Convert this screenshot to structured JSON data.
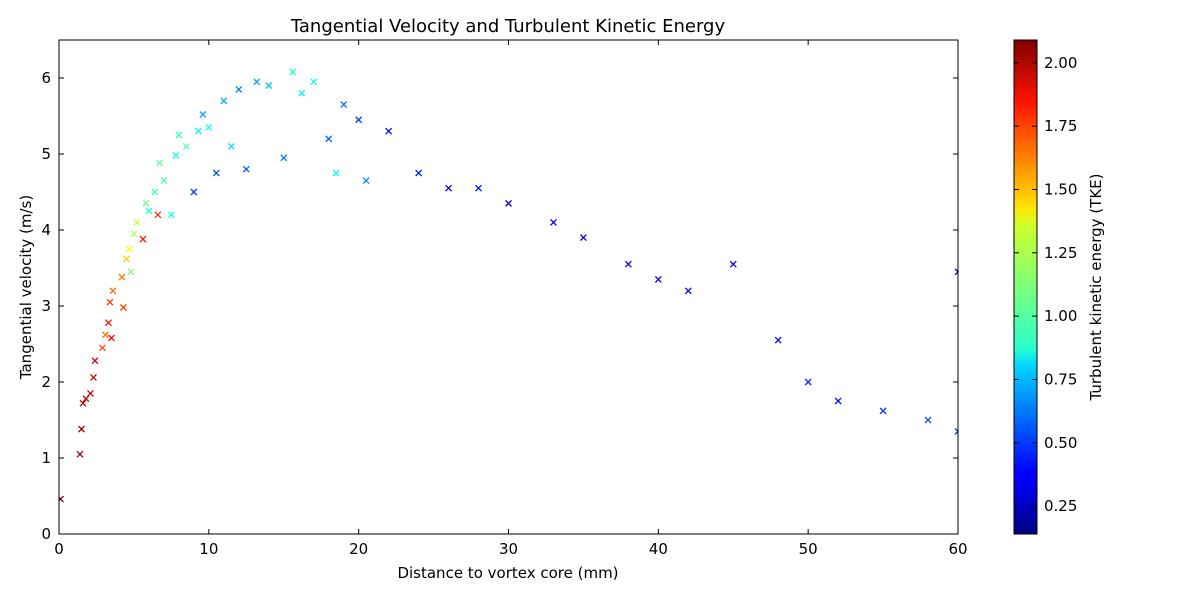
{
  "chart_data": {
    "type": "scatter",
    "title": "Tangential Velocity and Turbulent Kinetic Energy",
    "xlabel": "Distance to vortex core (mm)",
    "ylabel": "Tangential velocity (m/s)",
    "xlim": [
      0,
      60
    ],
    "ylim": [
      0,
      6.5
    ],
    "xticks": [
      0,
      10,
      20,
      30,
      40,
      50,
      60
    ],
    "yticks": [
      0,
      1,
      2,
      3,
      4,
      5,
      6
    ],
    "marker": "x",
    "grid": false,
    "colorbar": {
      "label": "Turbulent kinetic energy (TKE)",
      "min": 0.14,
      "max": 2.09,
      "ticks": [
        "0.25",
        "0.50",
        "0.75",
        "1.00",
        "1.25",
        "1.50",
        "1.75",
        "2.00"
      ],
      "colormap": "jet"
    },
    "points": [
      [
        0.1,
        0.46,
        2.08
      ],
      [
        1.4,
        1.05,
        2.05
      ],
      [
        1.5,
        1.38,
        2.02
      ],
      [
        1.6,
        1.72,
        1.95
      ],
      [
        1.8,
        1.78,
        1.98
      ],
      [
        2.1,
        1.85,
        1.96
      ],
      [
        2.3,
        2.06,
        1.95
      ],
      [
        2.4,
        2.28,
        1.92
      ],
      [
        2.9,
        2.45,
        1.7
      ],
      [
        3.1,
        2.62,
        1.62
      ],
      [
        3.3,
        2.78,
        1.82
      ],
      [
        3.4,
        3.05,
        1.75
      ],
      [
        3.6,
        3.2,
        1.65
      ],
      [
        3.5,
        2.58,
        1.85
      ],
      [
        4.2,
        3.38,
        1.6
      ],
      [
        4.3,
        2.98,
        1.72
      ],
      [
        4.5,
        3.62,
        1.45
      ],
      [
        4.7,
        3.75,
        1.35
      ],
      [
        4.8,
        3.45,
        1.1
      ],
      [
        5.0,
        3.95,
        1.2
      ],
      [
        5.2,
        4.1,
        1.25
      ],
      [
        5.6,
        3.88,
        1.8
      ],
      [
        5.8,
        4.35,
        1.1
      ],
      [
        6.0,
        4.25,
        0.95
      ],
      [
        6.4,
        4.5,
        1.0
      ],
      [
        6.6,
        4.2,
        1.75
      ],
      [
        6.7,
        4.88,
        1.05
      ],
      [
        7.0,
        4.65,
        1.02
      ],
      [
        7.5,
        4.2,
        0.9
      ],
      [
        7.8,
        4.98,
        0.92
      ],
      [
        8.0,
        5.25,
        0.95
      ],
      [
        8.5,
        5.1,
        1.05
      ],
      [
        9.0,
        4.5,
        0.5
      ],
      [
        9.3,
        5.3,
        0.85
      ],
      [
        9.6,
        5.52,
        0.7
      ],
      [
        10.0,
        5.35,
        0.9
      ],
      [
        10.5,
        4.75,
        0.55
      ],
      [
        11.0,
        5.7,
        0.7
      ],
      [
        11.5,
        5.1,
        0.82
      ],
      [
        12.0,
        5.85,
        0.62
      ],
      [
        12.5,
        4.8,
        0.55
      ],
      [
        13.2,
        5.95,
        0.7
      ],
      [
        14.0,
        5.9,
        0.75
      ],
      [
        15.0,
        4.95,
        0.6
      ],
      [
        15.6,
        6.08,
        0.92
      ],
      [
        16.2,
        5.8,
        0.85
      ],
      [
        17.0,
        5.95,
        0.9
      ],
      [
        18.0,
        5.2,
        0.55
      ],
      [
        18.5,
        4.75,
        0.88
      ],
      [
        19.0,
        5.65,
        0.6
      ],
      [
        20.0,
        5.45,
        0.48
      ],
      [
        20.5,
        4.65,
        0.65
      ],
      [
        22.0,
        5.3,
        0.4
      ],
      [
        24.0,
        4.75,
        0.45
      ],
      [
        26.0,
        4.55,
        0.35
      ],
      [
        28.0,
        4.55,
        0.42
      ],
      [
        30.0,
        4.35,
        0.32
      ],
      [
        33.0,
        4.1,
        0.35
      ],
      [
        35.0,
        3.9,
        0.3
      ],
      [
        38.0,
        3.55,
        0.34
      ],
      [
        40.0,
        3.35,
        0.33
      ],
      [
        42.0,
        3.2,
        0.36
      ],
      [
        45.0,
        3.55,
        0.3
      ],
      [
        48.0,
        2.55,
        0.4
      ],
      [
        50.0,
        2.0,
        0.45
      ],
      [
        52.0,
        1.75,
        0.42
      ],
      [
        55.0,
        1.62,
        0.5
      ],
      [
        58.0,
        1.5,
        0.55
      ],
      [
        60.0,
        1.35,
        0.45
      ],
      [
        60.0,
        3.45,
        0.25
      ]
    ]
  }
}
